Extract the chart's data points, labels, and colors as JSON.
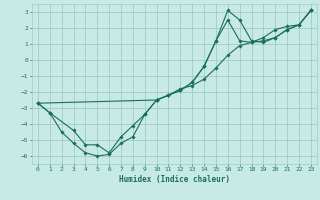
{
  "xlabel": "Humidex (Indice chaleur)",
  "xlim": [
    -0.5,
    23.5
  ],
  "ylim": [
    -6.5,
    3.5
  ],
  "yticks": [
    -6,
    -5,
    -4,
    -3,
    -2,
    -1,
    0,
    1,
    2,
    3
  ],
  "xticks": [
    0,
    1,
    2,
    3,
    4,
    5,
    6,
    7,
    8,
    9,
    10,
    11,
    12,
    13,
    14,
    15,
    16,
    17,
    18,
    19,
    20,
    21,
    22,
    23
  ],
  "bg_color": "#c8eae4",
  "grid_color": "#a0ccc4",
  "line_color": "#1a6e60",
  "line1_x": [
    0,
    1,
    2,
    3,
    4,
    5,
    6,
    7,
    8,
    9,
    10,
    11,
    12,
    13,
    14,
    15,
    16,
    17,
    18,
    19,
    20,
    21,
    22,
    23
  ],
  "line1_y": [
    -2.7,
    -3.3,
    -4.5,
    -5.2,
    -5.8,
    -6.0,
    -5.9,
    -5.2,
    -4.8,
    -3.4,
    -2.5,
    -2.2,
    -1.8,
    -1.6,
    -1.2,
    -0.5,
    0.3,
    0.9,
    1.1,
    1.4,
    1.9,
    2.1,
    2.2,
    3.1
  ],
  "line2_x": [
    0,
    1,
    3,
    4,
    5,
    6,
    7,
    8,
    9,
    10,
    11,
    12,
    13,
    14,
    15,
    16,
    17,
    18,
    19,
    20,
    21,
    22,
    23
  ],
  "line2_y": [
    -2.7,
    -3.3,
    -4.4,
    -5.3,
    -5.3,
    -5.8,
    -4.8,
    -4.1,
    -3.4,
    -2.5,
    -2.2,
    -1.9,
    -1.4,
    -0.4,
    1.2,
    3.1,
    2.5,
    1.2,
    1.1,
    1.4,
    1.9,
    2.2,
    3.1
  ],
  "line3_x": [
    0,
    10,
    11,
    12,
    13,
    14,
    15,
    16,
    17,
    18,
    19,
    20,
    21,
    22,
    23
  ],
  "line3_y": [
    -2.7,
    -2.5,
    -2.2,
    -1.9,
    -1.4,
    -0.4,
    1.2,
    2.5,
    1.2,
    1.1,
    1.2,
    1.4,
    1.9,
    2.2,
    3.1
  ]
}
